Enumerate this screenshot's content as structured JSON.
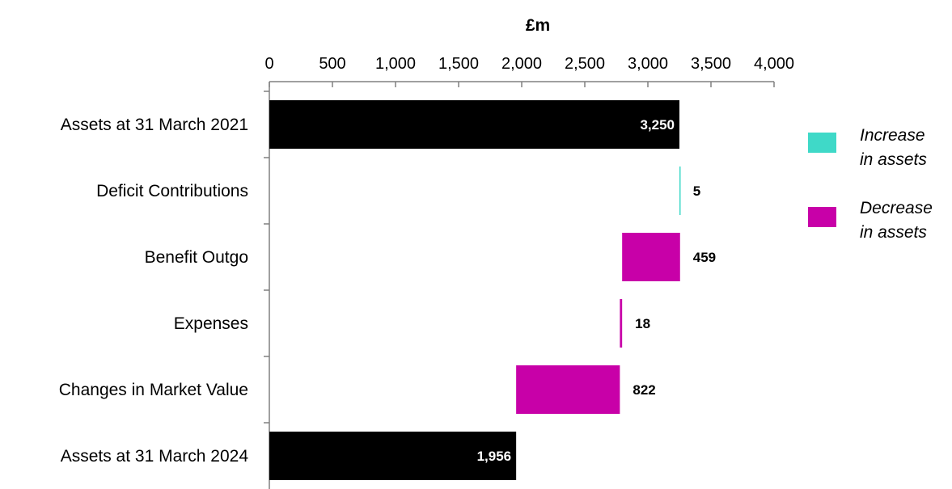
{
  "chart_data": {
    "type": "bar",
    "orientation": "horizontal",
    "style": "waterfall",
    "xlabel": "£m",
    "xlim": [
      0,
      4000
    ],
    "x_ticks": [
      0,
      500,
      1000,
      1500,
      2000,
      2500,
      3000,
      3500,
      4000
    ],
    "x_tick_labels": [
      "0",
      "500",
      "1,000",
      "1,500",
      "2,000",
      "2,500",
      "3,000",
      "3,500",
      "4,000"
    ],
    "categories": [
      "Assets at 31 March 2021",
      "Deficit Contributions",
      "Benefit Outgo",
      "Expenses",
      "Changes in Market Value",
      "Assets at 31 March 2024"
    ],
    "bars": [
      {
        "start": 0,
        "end": 3250,
        "value": 3250,
        "label": "3,250",
        "kind": "total"
      },
      {
        "start": 3250,
        "end": 3255,
        "value": 5,
        "label": "5",
        "kind": "increase"
      },
      {
        "start": 2796,
        "end": 3255,
        "value": 459,
        "label": "459",
        "kind": "decrease"
      },
      {
        "start": 2778,
        "end": 2796,
        "value": 18,
        "label": "18",
        "kind": "decrease"
      },
      {
        "start": 1956,
        "end": 2778,
        "value": 822,
        "label": "822",
        "kind": "decrease"
      },
      {
        "start": 0,
        "end": 1956,
        "value": 1956,
        "label": "1,956",
        "kind": "total"
      }
    ],
    "colors": {
      "total": "#000000",
      "increase": "#3fd9c8",
      "decrease": "#c800a8"
    },
    "legend": {
      "position": "right",
      "items": [
        {
          "line1": "Increase",
          "line2": "in assets",
          "kind": "increase"
        },
        {
          "line1": "Decrease",
          "line2": "in assets",
          "kind": "decrease"
        }
      ]
    },
    "grid": false
  }
}
